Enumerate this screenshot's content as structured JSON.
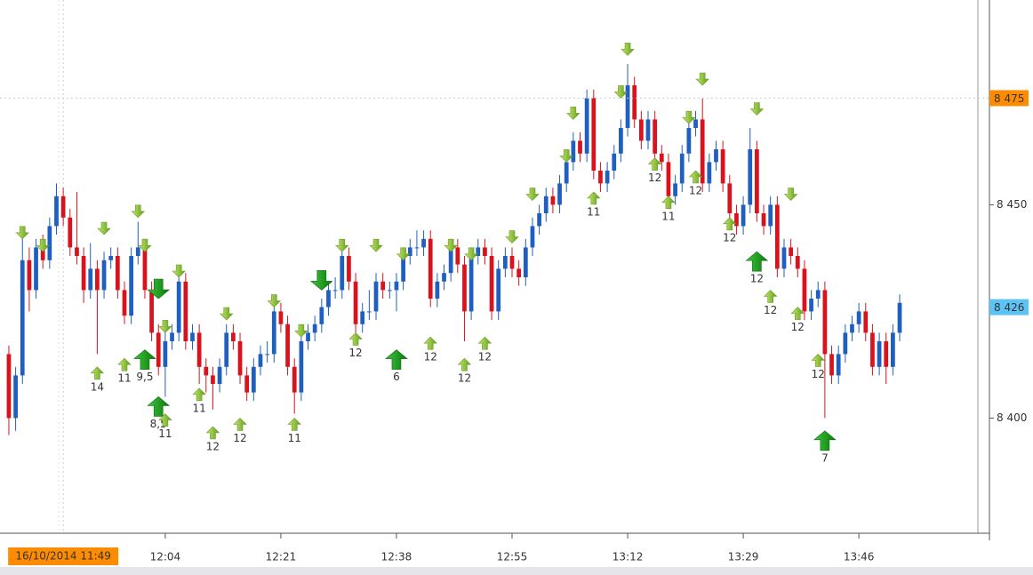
{
  "chart_data": {
    "type": "candlestick",
    "up_color": "#1f5fbf",
    "down_color": "#d9131e",
    "xlim": [
      -1.3,
      142.5
    ],
    "ylim": [
      8373,
      8498
    ],
    "xticks": [
      {
        "value": 23,
        "label": "12:04"
      },
      {
        "value": 40,
        "label": "12:21"
      },
      {
        "value": 57,
        "label": "12:38"
      },
      {
        "value": 74,
        "label": "12:55"
      },
      {
        "value": 91,
        "label": "13:12"
      },
      {
        "value": 108,
        "label": "13:29"
      },
      {
        "value": 125,
        "label": "13:46"
      }
    ],
    "yticks": [
      {
        "value": 8400,
        "label": "8 400"
      },
      {
        "value": 8450,
        "label": "8 450"
      }
    ],
    "price_tags": [
      {
        "value": 8475,
        "label": "8 475",
        "color": "#ff8c00",
        "crosshair": true
      },
      {
        "value": 8426,
        "label": "8 426",
        "color": "#5cc3f5",
        "crosshair": false
      }
    ],
    "time_tag": {
      "value": 8,
      "label": "16/10/2014 11:49",
      "color": "#ff8c00"
    },
    "candles": [
      [
        8415,
        8417,
        8396,
        8400
      ],
      [
        8400,
        8412,
        8397,
        8410
      ],
      [
        8410,
        8442,
        8408,
        8437
      ],
      [
        8437,
        8440,
        8425,
        8430
      ],
      [
        8430,
        8442,
        8428,
        8440
      ],
      [
        8440,
        8443,
        8435,
        8437
      ],
      [
        8437,
        8447,
        8435,
        8445
      ],
      [
        8445,
        8455,
        8443,
        8452
      ],
      [
        8452,
        8454,
        8445,
        8447
      ],
      [
        8447,
        8449,
        8438,
        8440
      ],
      [
        8440,
        8453,
        8436,
        8438
      ],
      [
        8438,
        8440,
        8427,
        8430
      ],
      [
        8430,
        8441,
        8428,
        8435
      ],
      [
        8435,
        8437,
        8415,
        8430
      ],
      [
        8430,
        8439,
        8428,
        8437
      ],
      [
        8437,
        8440,
        8435,
        8438
      ],
      [
        8438,
        8440,
        8428,
        8430
      ],
      [
        8430,
        8432,
        8422,
        8424
      ],
      [
        8424,
        8440,
        8422,
        8438
      ],
      [
        8438,
        8446,
        8436,
        8440
      ],
      [
        8440,
        8442,
        8428,
        8430
      ],
      [
        8430,
        8432,
        8418,
        8420
      ],
      [
        8420,
        8422,
        8410,
        8412
      ],
      [
        8412,
        8420,
        8405,
        8418
      ],
      [
        8418,
        8422,
        8416,
        8420
      ],
      [
        8420,
        8434,
        8418,
        8432
      ],
      [
        8432,
        8434,
        8416,
        8418
      ],
      [
        8418,
        8422,
        8416,
        8420
      ],
      [
        8420,
        8422,
        8408,
        8412
      ],
      [
        8412,
        8414,
        8406,
        8410
      ],
      [
        8410,
        8412,
        8402,
        8408
      ],
      [
        8408,
        8414,
        8406,
        8412
      ],
      [
        8412,
        8422,
        8410,
        8420
      ],
      [
        8420,
        8422,
        8416,
        8418
      ],
      [
        8418,
        8420,
        8408,
        8410
      ],
      [
        8410,
        8412,
        8404,
        8406
      ],
      [
        8406,
        8414,
        8404,
        8412
      ],
      [
        8412,
        8417,
        8410,
        8415
      ],
      [
        8415,
        8418,
        8413,
        8415
      ],
      [
        8415,
        8427,
        8413,
        8425
      ],
      [
        8425,
        8427,
        8420,
        8422
      ],
      [
        8422,
        8424,
        8410,
        8412
      ],
      [
        8412,
        8414,
        8401,
        8406
      ],
      [
        8406,
        8420,
        8404,
        8418
      ],
      [
        8418,
        8422,
        8416,
        8420
      ],
      [
        8420,
        8424,
        8418,
        8422
      ],
      [
        8422,
        8428,
        8420,
        8426
      ],
      [
        8426,
        8432,
        8424,
        8430
      ],
      [
        8430,
        8433,
        8428,
        8430
      ],
      [
        8430,
        8440,
        8428,
        8438
      ],
      [
        8438,
        8440,
        8430,
        8432
      ],
      [
        8432,
        8434,
        8420,
        8422
      ],
      [
        8422,
        8427,
        8420,
        8425
      ],
      [
        8425,
        8430,
        8423,
        8425
      ],
      [
        8425,
        8434,
        8423,
        8432
      ],
      [
        8432,
        8434,
        8428,
        8430
      ],
      [
        8430,
        8432,
        8428,
        8430
      ],
      [
        8430,
        8434,
        8425,
        8432
      ],
      [
        8432,
        8440,
        8430,
        8438
      ],
      [
        8438,
        8442,
        8436,
        8440
      ],
      [
        8440,
        8444,
        8438,
        8440
      ],
      [
        8440,
        8444,
        8438,
        8442
      ],
      [
        8442,
        8444,
        8426,
        8428
      ],
      [
        8428,
        8434,
        8426,
        8432
      ],
      [
        8432,
        8436,
        8430,
        8434
      ],
      [
        8434,
        8442,
        8432,
        8440
      ],
      [
        8440,
        8442,
        8434,
        8436
      ],
      [
        8436,
        8438,
        8418,
        8425
      ],
      [
        8425,
        8440,
        8423,
        8438
      ],
      [
        8438,
        8442,
        8436,
        8440
      ],
      [
        8440,
        8442,
        8436,
        8438
      ],
      [
        8438,
        8440,
        8423,
        8425
      ],
      [
        8425,
        8437,
        8423,
        8435
      ],
      [
        8435,
        8440,
        8433,
        8438
      ],
      [
        8438,
        8440,
        8433,
        8435
      ],
      [
        8435,
        8437,
        8431,
        8433
      ],
      [
        8433,
        8442,
        8431,
        8440
      ],
      [
        8440,
        8447,
        8438,
        8445
      ],
      [
        8445,
        8450,
        8443,
        8448
      ],
      [
        8448,
        8454,
        8446,
        8452
      ],
      [
        8452,
        8454,
        8448,
        8450
      ],
      [
        8450,
        8457,
        8448,
        8455
      ],
      [
        8455,
        8462,
        8453,
        8460
      ],
      [
        8460,
        8467,
        8458,
        8465
      ],
      [
        8465,
        8467,
        8460,
        8462
      ],
      [
        8462,
        8477,
        8460,
        8475
      ],
      [
        8475,
        8477,
        8456,
        8458
      ],
      [
        8458,
        8460,
        8453,
        8455
      ],
      [
        8455,
        8460,
        8453,
        8458
      ],
      [
        8458,
        8464,
        8456,
        8462
      ],
      [
        8462,
        8470,
        8460,
        8468
      ],
      [
        8468,
        8483,
        8466,
        8478
      ],
      [
        8478,
        8480,
        8468,
        8470
      ],
      [
        8470,
        8472,
        8463,
        8465
      ],
      [
        8465,
        8472,
        8463,
        8470
      ],
      [
        8470,
        8472,
        8460,
        8462
      ],
      [
        8462,
        8464,
        8458,
        8460
      ],
      [
        8460,
        8462,
        8450,
        8452
      ],
      [
        8452,
        8457,
        8450,
        8455
      ],
      [
        8455,
        8464,
        8453,
        8462
      ],
      [
        8462,
        8470,
        8460,
        8468
      ],
      [
        8468,
        8472,
        8466,
        8470
      ],
      [
        8470,
        8475,
        8453,
        8455
      ],
      [
        8455,
        8462,
        8453,
        8460
      ],
      [
        8460,
        8465,
        8458,
        8463
      ],
      [
        8463,
        8465,
        8453,
        8455
      ],
      [
        8455,
        8457,
        8446,
        8448
      ],
      [
        8448,
        8450,
        8443,
        8445
      ],
      [
        8445,
        8452,
        8443,
        8450
      ],
      [
        8450,
        8468,
        8448,
        8463
      ],
      [
        8463,
        8465,
        8446,
        8448
      ],
      [
        8448,
        8450,
        8443,
        8445
      ],
      [
        8445,
        8452,
        8443,
        8450
      ],
      [
        8450,
        8452,
        8433,
        8435
      ],
      [
        8435,
        8442,
        8433,
        8440
      ],
      [
        8440,
        8442,
        8436,
        8438
      ],
      [
        8438,
        8440,
        8433,
        8435
      ],
      [
        8435,
        8437,
        8423,
        8425
      ],
      [
        8425,
        8430,
        8423,
        8428
      ],
      [
        8428,
        8432,
        8426,
        8430
      ],
      [
        8430,
        8432,
        8400,
        8415
      ],
      [
        8415,
        8417,
        8408,
        8410
      ],
      [
        8410,
        8417,
        8408,
        8415
      ],
      [
        8415,
        8422,
        8413,
        8420
      ],
      [
        8420,
        8424,
        8418,
        8422
      ],
      [
        8422,
        8427,
        8420,
        8425
      ],
      [
        8425,
        8427,
        8418,
        8420
      ],
      [
        8420,
        8422,
        8410,
        8412
      ],
      [
        8412,
        8420,
        8410,
        8418
      ],
      [
        8418,
        8420,
        8408,
        8412
      ],
      [
        8412,
        8422,
        8410,
        8420
      ],
      [
        8420,
        8429,
        8418,
        8427
      ]
    ],
    "signals": [
      {
        "x": 13,
        "value": 8412,
        "dir": "up",
        "label": "14"
      },
      {
        "x": 17,
        "value": 8414,
        "dir": "up",
        "label": "11"
      },
      {
        "x": 20,
        "value": 8416,
        "dir": "up",
        "size": "big",
        "label": "9,5"
      },
      {
        "x": 22,
        "value": 8405,
        "dir": "up",
        "size": "big",
        "label": "8,5"
      },
      {
        "x": 23,
        "value": 8401,
        "dir": "up",
        "label": "11"
      },
      {
        "x": 28,
        "value": 8407,
        "dir": "up",
        "label": "11"
      },
      {
        "x": 30,
        "value": 8398,
        "dir": "up",
        "label": "12"
      },
      {
        "x": 34,
        "value": 8400,
        "dir": "up",
        "label": "12"
      },
      {
        "x": 42,
        "value": 8400,
        "dir": "up",
        "label": "11"
      },
      {
        "x": 51,
        "value": 8420,
        "dir": "up",
        "label": "12"
      },
      {
        "x": 57,
        "value": 8416,
        "dir": "up",
        "size": "big",
        "label": "6"
      },
      {
        "x": 62,
        "value": 8419,
        "dir": "up",
        "label": "12"
      },
      {
        "x": 67,
        "value": 8414,
        "dir": "up",
        "label": "12"
      },
      {
        "x": 70,
        "value": 8419,
        "dir": "up",
        "label": "12"
      },
      {
        "x": 86,
        "value": 8453,
        "dir": "up",
        "label": "11"
      },
      {
        "x": 95,
        "value": 8461,
        "dir": "up",
        "label": "12"
      },
      {
        "x": 97,
        "value": 8452,
        "dir": "up",
        "label": "11"
      },
      {
        "x": 101,
        "value": 8458,
        "dir": "up",
        "label": "12"
      },
      {
        "x": 106,
        "value": 8447,
        "dir": "up",
        "label": "12"
      },
      {
        "x": 110,
        "value": 8439,
        "dir": "up",
        "size": "big",
        "label": "12"
      },
      {
        "x": 112,
        "value": 8430,
        "dir": "up",
        "label": "12"
      },
      {
        "x": 116,
        "value": 8426,
        "dir": "up",
        "label": "12"
      },
      {
        "x": 119,
        "value": 8415,
        "dir": "up",
        "label": "12"
      },
      {
        "x": 120,
        "value": 8397,
        "dir": "up",
        "size": "big",
        "label": "7"
      },
      {
        "x": 2,
        "value": 8442,
        "dir": "down"
      },
      {
        "x": 5,
        "value": 8439,
        "dir": "down"
      },
      {
        "x": 14,
        "value": 8443,
        "dir": "down"
      },
      {
        "x": 19,
        "value": 8447,
        "dir": "down"
      },
      {
        "x": 20,
        "value": 8439,
        "dir": "down"
      },
      {
        "x": 22,
        "value": 8428,
        "dir": "down",
        "size": "big"
      },
      {
        "x": 23,
        "value": 8420,
        "dir": "down"
      },
      {
        "x": 25,
        "value": 8433,
        "dir": "down"
      },
      {
        "x": 32,
        "value": 8423,
        "dir": "down"
      },
      {
        "x": 39,
        "value": 8426,
        "dir": "down"
      },
      {
        "x": 43,
        "value": 8419,
        "dir": "down"
      },
      {
        "x": 46,
        "value": 8430,
        "dir": "down",
        "size": "big"
      },
      {
        "x": 49,
        "value": 8439,
        "dir": "down"
      },
      {
        "x": 54,
        "value": 8439,
        "dir": "down"
      },
      {
        "x": 58,
        "value": 8437,
        "dir": "down"
      },
      {
        "x": 65,
        "value": 8439,
        "dir": "down"
      },
      {
        "x": 68,
        "value": 8437,
        "dir": "down"
      },
      {
        "x": 74,
        "value": 8441,
        "dir": "down"
      },
      {
        "x": 77,
        "value": 8451,
        "dir": "down"
      },
      {
        "x": 82,
        "value": 8460,
        "dir": "down"
      },
      {
        "x": 83,
        "value": 8470,
        "dir": "down"
      },
      {
        "x": 90,
        "value": 8475,
        "dir": "down"
      },
      {
        "x": 91,
        "value": 8485,
        "dir": "down"
      },
      {
        "x": 100,
        "value": 8469,
        "dir": "down"
      },
      {
        "x": 102,
        "value": 8478,
        "dir": "down"
      },
      {
        "x": 110,
        "value": 8471,
        "dir": "down"
      },
      {
        "x": 115,
        "value": 8451,
        "dir": "down"
      }
    ]
  }
}
